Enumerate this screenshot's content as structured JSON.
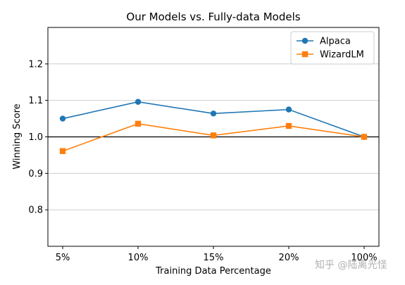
{
  "chart_data": {
    "type": "line",
    "title": "Our Models vs. Fully-data Models",
    "xlabel": "Training Data Percentage",
    "ylabel": "Winning Score",
    "categories": [
      "5%",
      "10%",
      "15%",
      "20%",
      "100%"
    ],
    "ylim": [
      0.7,
      1.3
    ],
    "yticks": [
      "0.8",
      "0.9",
      "1.0",
      "1.1",
      "1.2"
    ],
    "grid": "y",
    "reference_line": 1.0,
    "legend_position": "top-right",
    "series": [
      {
        "name": "Alpaca",
        "values": [
          1.05,
          1.096,
          1.064,
          1.075,
          1.0
        ],
        "color": "#1f77b4",
        "marker": "circle"
      },
      {
        "name": "WizardLM",
        "values": [
          0.961,
          1.036,
          1.004,
          1.03,
          1.0
        ],
        "color": "#ff7f0e",
        "marker": "square"
      }
    ]
  },
  "watermark": "知乎 @陆离光怪"
}
